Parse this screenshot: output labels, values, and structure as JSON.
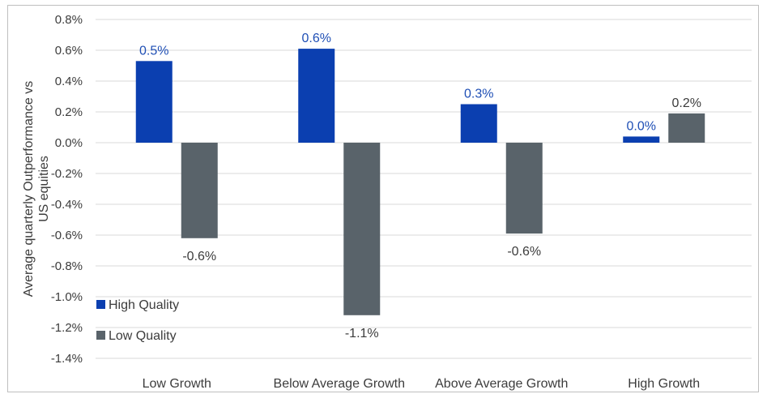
{
  "chart_data": {
    "type": "bar",
    "ylabel": "Average quarterly Outperformance vs US equities",
    "ylabel_lines": [
      "Average quarterly Outperformance vs",
      "US equities"
    ],
    "ylim": [
      -1.4,
      0.8
    ],
    "yticks": [
      0.8,
      0.6,
      0.4,
      0.2,
      0.0,
      -0.2,
      -0.4,
      -0.6,
      -0.8,
      -1.0,
      -1.2,
      -1.4
    ],
    "ytick_labels": [
      "0.8%",
      "0.6%",
      "0.4%",
      "0.2%",
      "0.0%",
      "-0.2%",
      "-0.4%",
      "-0.6%",
      "-0.8%",
      "-1.0%",
      "-1.2%",
      "-1.4%"
    ],
    "grid": true,
    "legend_position": "bottom-left",
    "categories": [
      "Low Growth",
      "Below Average Growth",
      "Above Average Growth",
      "High Growth"
    ],
    "series": [
      {
        "name": "High Quality",
        "color": "#0b3fb0",
        "label_color": "#1f4fb5",
        "values": [
          0.53,
          0.61,
          0.25,
          0.04
        ],
        "labels": [
          "0.5%",
          "0.6%",
          "0.3%",
          "0.0%"
        ]
      },
      {
        "name": "Low Quality",
        "color": "#59636a",
        "label_color": "#3c3c3c",
        "values": [
          -0.62,
          -1.12,
          -0.59,
          0.19
        ],
        "labels": [
          "-0.6%",
          "-1.1%",
          "-0.6%",
          "0.2%"
        ]
      }
    ]
  }
}
